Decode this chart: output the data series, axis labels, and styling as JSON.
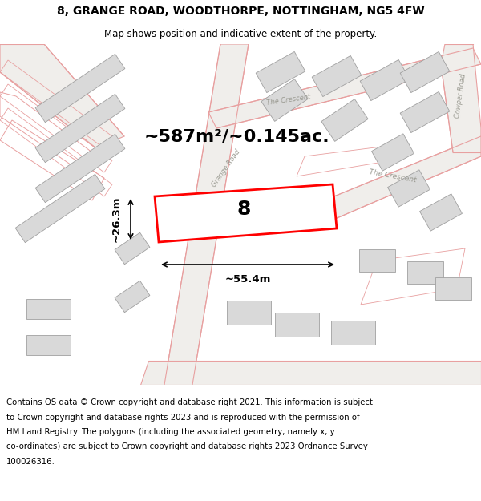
{
  "title_line1": "8, GRANGE ROAD, WOODTHORPE, NOTTINGHAM, NG5 4FW",
  "title_line2": "Map shows position and indicative extent of the property.",
  "area_text": "~587m²/~0.145ac.",
  "width_label": "~55.4m",
  "height_label": "~26.3m",
  "property_number": "8",
  "footer_lines": [
    "Contains OS data © Crown copyright and database right 2021. This information is subject",
    "to Crown copyright and database rights 2023 and is reproduced with the permission of",
    "HM Land Registry. The polygons (including the associated geometry, namely x, y",
    "co-ordinates) are subject to Crown copyright and database rights 2023 Ordnance Survey",
    "100026316."
  ],
  "map_bg": "#f7f6f4",
  "building_fill": "#d9d9d9",
  "building_edge": "#a0a0a0",
  "road_outline": "#e8a0a0",
  "road_fill": "#f7f6f4",
  "property_fill": "#ffffff",
  "property_edge": "#ff0000",
  "footer_bg": "#ffffff",
  "title_bg": "#ffffff",
  "grange_road_label": "Grange Road",
  "crescent_label1": "The Crescent",
  "crescent_label2": "The Crescent",
  "cowper_label": "Cowper Road"
}
